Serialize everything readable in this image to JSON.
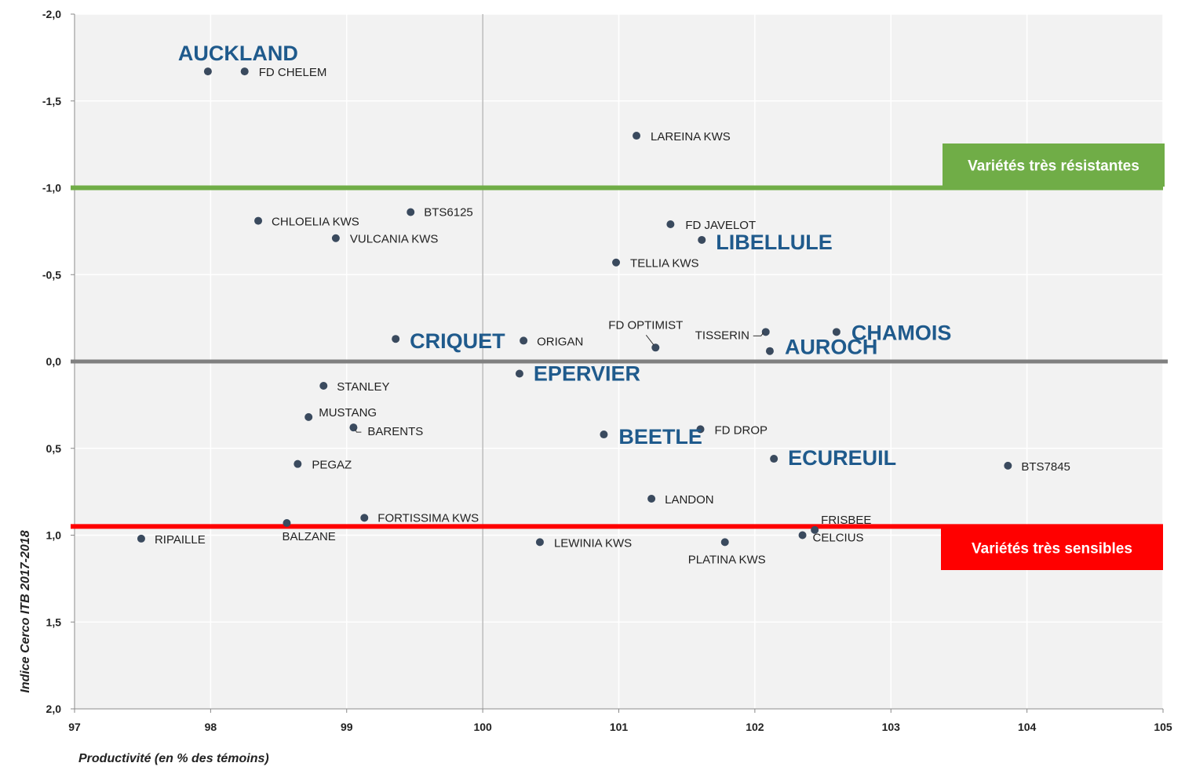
{
  "chart_data": {
    "type": "scatter",
    "xlabel": "Productivité (en % des témoins)",
    "ylabel": "Indice Cerco ITB 2017-2018",
    "xlim": [
      97,
      105
    ],
    "ylim": [
      -2.0,
      2.0
    ],
    "y_inverted": true,
    "grid": true,
    "x_ticks": [
      "97",
      "98",
      "99",
      "100",
      "101",
      "102",
      "103",
      "104",
      "105"
    ],
    "y_ticks": [
      "-2,0",
      "-1,5",
      "-1,0",
      "-0,5",
      "0,0",
      "0,5",
      "1,0",
      "1,5",
      "2,0"
    ],
    "point_color": "#3a4a5e",
    "reference_lines": [
      {
        "y": -1.0,
        "color": "#70ad47",
        "label": "Variétés très résistantes"
      },
      {
        "y": 0.0,
        "color": "#808080"
      },
      {
        "y": 0.95,
        "color": "#ff0000",
        "label": "Variétés très sensibles"
      }
    ],
    "points": [
      {
        "name": "AUCKLAND",
        "x": 97.98,
        "y": -1.67,
        "highlight": true
      },
      {
        "name": "FD CHELEM",
        "x": 98.25,
        "y": -1.67
      },
      {
        "name": "LAREINA KWS",
        "x": 101.13,
        "y": -1.3
      },
      {
        "name": "CHLOELIA KWS",
        "x": 98.35,
        "y": -0.81
      },
      {
        "name": "BTS6125",
        "x": 99.47,
        "y": -0.86
      },
      {
        "name": "VULCANIA KWS",
        "x": 98.92,
        "y": -0.71
      },
      {
        "name": "FD JAVELOT",
        "x": 101.38,
        "y": -0.79
      },
      {
        "name": "LIBELLULE",
        "x": 101.61,
        "y": -0.7,
        "highlight": true
      },
      {
        "name": "TELLIA KWS",
        "x": 100.98,
        "y": -0.57
      },
      {
        "name": "CRIQUET",
        "x": 99.36,
        "y": -0.13,
        "highlight": true
      },
      {
        "name": "ORIGAN",
        "x": 100.3,
        "y": -0.12
      },
      {
        "name": "FD OPTIMIST",
        "x": 101.27,
        "y": -0.08
      },
      {
        "name": "TISSERIN",
        "x": 102.08,
        "y": -0.17
      },
      {
        "name": "AUROCH",
        "x": 102.11,
        "y": -0.06,
        "highlight": true
      },
      {
        "name": "CHAMOIS",
        "x": 102.6,
        "y": -0.17,
        "highlight": true
      },
      {
        "name": "EPERVIER",
        "x": 100.27,
        "y": 0.07,
        "highlight": true
      },
      {
        "name": "STANLEY",
        "x": 98.83,
        "y": 0.14
      },
      {
        "name": "MUSTANG",
        "x": 98.72,
        "y": 0.32
      },
      {
        "name": "BARENTS",
        "x": 99.05,
        "y": 0.38
      },
      {
        "name": "BEETLE",
        "x": 100.89,
        "y": 0.42,
        "highlight": true
      },
      {
        "name": "FD DROP",
        "x": 101.6,
        "y": 0.39
      },
      {
        "name": "PEGAZ",
        "x": 98.64,
        "y": 0.59
      },
      {
        "name": "ECUREUIL",
        "x": 102.14,
        "y": 0.56,
        "highlight": true
      },
      {
        "name": "BTS7845",
        "x": 103.86,
        "y": 0.6
      },
      {
        "name": "LANDON",
        "x": 101.24,
        "y": 0.79
      },
      {
        "name": "FORTISSIMA KWS",
        "x": 99.13,
        "y": 0.9
      },
      {
        "name": "BALZANE",
        "x": 98.56,
        "y": 0.93
      },
      {
        "name": "RIPAILLE",
        "x": 97.49,
        "y": 1.02
      },
      {
        "name": "LEWINIA KWS",
        "x": 100.42,
        "y": 1.04
      },
      {
        "name": "PLATINA KWS",
        "x": 101.78,
        "y": 1.04
      },
      {
        "name": "FRISBEE",
        "x": 102.44,
        "y": 0.97
      },
      {
        "name": "CELCIUS",
        "x": 102.35,
        "y": 1.0
      }
    ]
  }
}
